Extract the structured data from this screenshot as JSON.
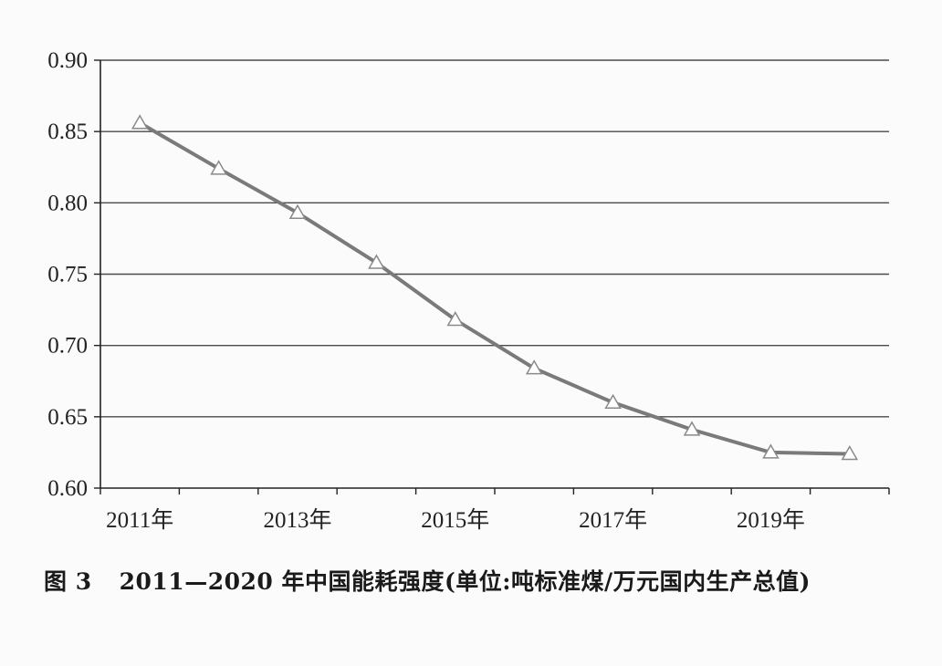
{
  "caption": {
    "figure_label": "图 3",
    "title": "2011—2020 年中国能耗强度(单位:吨标准煤/万元国内生产总值)"
  },
  "chart_data": {
    "type": "line",
    "title": "2011—2020 年中国能耗强度(单位:吨标准煤/万元国内生产总值)",
    "xlabel": "",
    "ylabel": "",
    "x": [
      2011,
      2012,
      2013,
      2014,
      2015,
      2016,
      2017,
      2018,
      2019,
      2020
    ],
    "x_tick_labels": [
      "2011年",
      "2013年",
      "2015年",
      "2017年",
      "2019年"
    ],
    "y_tick_labels": [
      "0.60",
      "0.65",
      "0.70",
      "0.75",
      "0.80",
      "0.85",
      "0.90"
    ],
    "ylim": [
      0.6,
      0.9
    ],
    "grid": "horizontal",
    "marker": "triangle-open",
    "series": [
      {
        "values": [
          0.856,
          0.824,
          0.793,
          0.758,
          0.718,
          0.684,
          0.66,
          0.641,
          0.625,
          0.624
        ]
      }
    ],
    "colors": {
      "line": "#7a7a7a",
      "grid": "#4a4a4a",
      "marker_stroke": "#8a8a8a",
      "marker_fill": "#ffffff"
    }
  }
}
